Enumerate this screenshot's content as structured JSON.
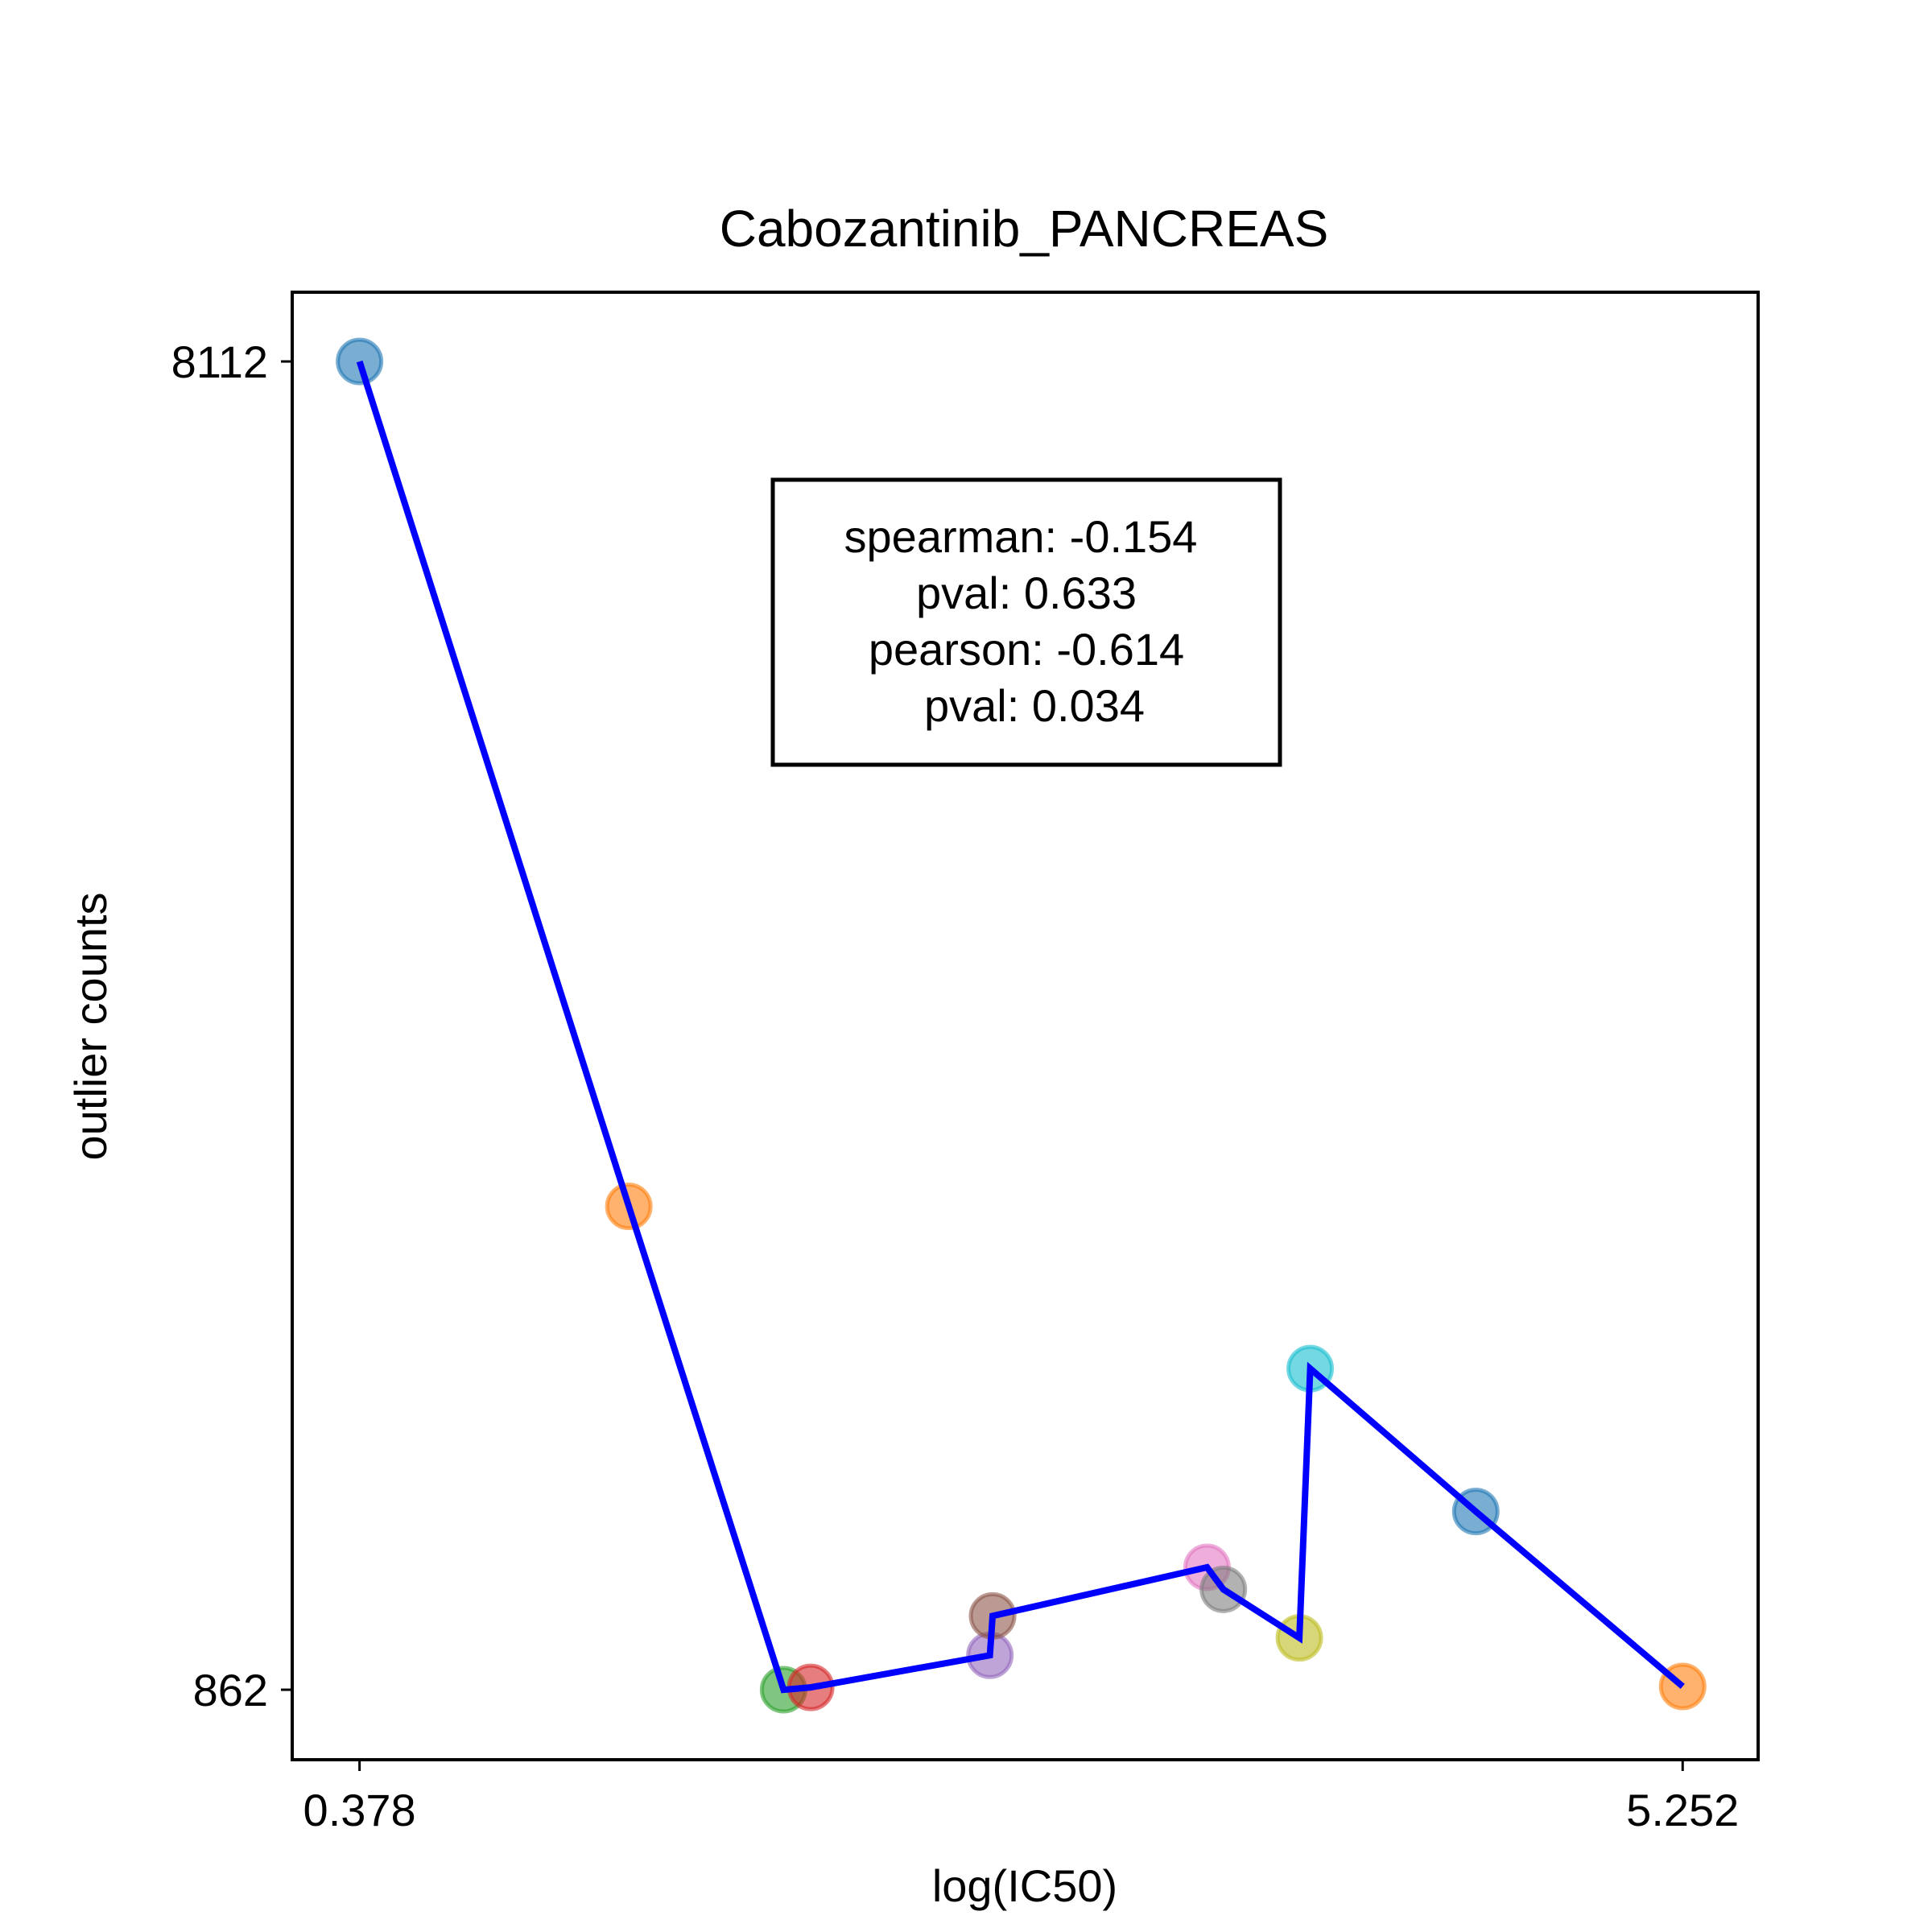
{
  "chart_data": {
    "type": "scatter",
    "title": "Cabozantinib_PANCREAS",
    "xlabel": "log(IC50)",
    "ylabel": "outlier counts",
    "xlim": [
      0.13,
      5.53
    ],
    "ylim": [
      480,
      8490
    ],
    "x_ticks": [
      0.378,
      5.252
    ],
    "x_tick_labels": [
      "0.378",
      "5.252"
    ],
    "y_ticks": [
      862,
      8112
    ],
    "y_tick_labels": [
      "862",
      "8112"
    ],
    "grid": false,
    "legend": false,
    "stats_box": {
      "position": "top-center",
      "lines": [
        "spearman: -0.154",
        "pval: 0.633",
        "pearson: -0.614",
        "pval: 0.034"
      ]
    },
    "points": [
      {
        "x": 0.378,
        "y": 8112,
        "color": "#1f77b4"
      },
      {
        "x": 1.37,
        "y": 3500,
        "color": "#ff7f0e"
      },
      {
        "x": 1.94,
        "y": 862,
        "color": "#2ca02c"
      },
      {
        "x": 2.04,
        "y": 875,
        "color": "#d62728"
      },
      {
        "x": 2.7,
        "y": 1050,
        "color": "#9467bd"
      },
      {
        "x": 2.71,
        "y": 1265,
        "color": "#8c564b"
      },
      {
        "x": 3.5,
        "y": 1530,
        "color": "#e377c2"
      },
      {
        "x": 3.56,
        "y": 1410,
        "color": "#7f7f7f"
      },
      {
        "x": 3.84,
        "y": 1145,
        "color": "#bcbd22"
      },
      {
        "x": 3.88,
        "y": 2615,
        "color": "#17becf"
      },
      {
        "x": 4.49,
        "y": 1835,
        "color": "#1f77b4"
      },
      {
        "x": 5.252,
        "y": 880,
        "color": "#ff7f0e"
      }
    ],
    "line": {
      "color": "#0000ff",
      "x": [
        0.378,
        1.37,
        1.94,
        2.04,
        2.7,
        2.71,
        3.5,
        3.56,
        3.84,
        3.88,
        4.49,
        5.252
      ],
      "y": [
        8112,
        3500,
        862,
        875,
        1050,
        1265,
        1530,
        1410,
        1145,
        2615,
        1835,
        880
      ]
    }
  }
}
